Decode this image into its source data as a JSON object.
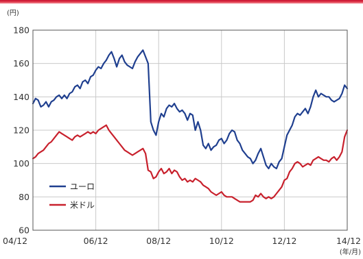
{
  "chart_data": {
    "type": "line",
    "y_unit_label": "(円)",
    "x_unit_label": "(年/月)",
    "ylim": [
      60,
      180
    ],
    "y_ticks": [
      60,
      80,
      100,
      120,
      140,
      160,
      180
    ],
    "x_ticks": [
      "04/12",
      "06/12",
      "08/12",
      "10/12",
      "12/12",
      "14/12"
    ],
    "grid": true,
    "legend_position": "bottom-left",
    "series": [
      {
        "name": "ユーロ",
        "color": "#1f3f8f",
        "x": [
          "04/12",
          "05/01",
          "05/02",
          "05/03",
          "05/04",
          "05/05",
          "05/06",
          "05/07",
          "05/08",
          "05/09",
          "05/10",
          "05/11",
          "05/12",
          "06/01",
          "06/02",
          "06/03",
          "06/04",
          "06/05",
          "06/06",
          "06/07",
          "06/08",
          "06/09",
          "06/10",
          "06/11",
          "06/12",
          "07/01",
          "07/02",
          "07/03",
          "07/04",
          "07/05",
          "07/06",
          "07/07",
          "07/08",
          "07/09",
          "07/10",
          "07/11",
          "07/12",
          "08/01",
          "08/02",
          "08/03",
          "08/04",
          "08/05",
          "08/06",
          "08/07",
          "08/08",
          "08/09",
          "08/10",
          "08/11",
          "08/12",
          "09/01",
          "09/02",
          "09/03",
          "09/04",
          "09/05",
          "09/06",
          "09/07",
          "09/08",
          "09/09",
          "09/10",
          "09/11",
          "09/12",
          "10/01",
          "10/02",
          "10/03",
          "10/04",
          "10/05",
          "10/06",
          "10/07",
          "10/08",
          "10/09",
          "10/10",
          "10/11",
          "10/12",
          "11/01",
          "11/02",
          "11/03",
          "11/04",
          "11/05",
          "11/06",
          "11/07",
          "11/08",
          "11/09",
          "11/10",
          "11/11",
          "11/12",
          "12/01",
          "12/02",
          "12/03",
          "12/04",
          "12/05",
          "12/06",
          "12/07",
          "12/08",
          "12/09",
          "12/10",
          "12/11",
          "12/12",
          "13/01",
          "13/02",
          "13/03",
          "13/04",
          "13/05",
          "13/06",
          "13/07",
          "13/08",
          "13/09",
          "13/10",
          "13/11",
          "13/12",
          "14/01",
          "14/02",
          "14/03",
          "14/04",
          "14/05",
          "14/06",
          "14/07",
          "14/08",
          "14/09",
          "14/10",
          "14/11",
          "14/12"
        ],
        "values": [
          136,
          139,
          138,
          134,
          135,
          137,
          134,
          137,
          138,
          140,
          141,
          139,
          141,
          139,
          142,
          143,
          146,
          147,
          145,
          149,
          150,
          148,
          152,
          153,
          156,
          158,
          157,
          160,
          162,
          165,
          167,
          163,
          158,
          163,
          165,
          161,
          159,
          158,
          157,
          161,
          164,
          166,
          168,
          164,
          160,
          125,
          120,
          117,
          125,
          130,
          128,
          133,
          135,
          134,
          136,
          133,
          131,
          132,
          130,
          126,
          130,
          129,
          120,
          125,
          120,
          111,
          109,
          112,
          108,
          110,
          111,
          114,
          115,
          112,
          114,
          118,
          120,
          119,
          114,
          112,
          108,
          106,
          104,
          103,
          100,
          102,
          106,
          109,
          104,
          99,
          97,
          100,
          98,
          97,
          101,
          103,
          110,
          117,
          120,
          123,
          128,
          130,
          129,
          131,
          133,
          130,
          134,
          140,
          144,
          140,
          142,
          141,
          140,
          140,
          138,
          137,
          138,
          139,
          142,
          147,
          145
        ]
      },
      {
        "name": "米ドル",
        "color": "#c8202c",
        "x": [
          "04/12",
          "05/01",
          "05/02",
          "05/03",
          "05/04",
          "05/05",
          "05/06",
          "05/07",
          "05/08",
          "05/09",
          "05/10",
          "05/11",
          "05/12",
          "06/01",
          "06/02",
          "06/03",
          "06/04",
          "06/05",
          "06/06",
          "06/07",
          "06/08",
          "06/09",
          "06/10",
          "06/11",
          "06/12",
          "07/01",
          "07/02",
          "07/03",
          "07/04",
          "07/05",
          "07/06",
          "07/07",
          "07/08",
          "07/09",
          "07/10",
          "07/11",
          "07/12",
          "08/01",
          "08/02",
          "08/03",
          "08/04",
          "08/05",
          "08/06",
          "08/07",
          "08/08",
          "08/09",
          "08/10",
          "08/11",
          "08/12",
          "09/01",
          "09/02",
          "09/03",
          "09/04",
          "09/05",
          "09/06",
          "09/07",
          "09/08",
          "09/09",
          "09/10",
          "09/11",
          "09/12",
          "10/01",
          "10/02",
          "10/03",
          "10/04",
          "10/05",
          "10/06",
          "10/07",
          "10/08",
          "10/09",
          "10/10",
          "10/11",
          "10/12",
          "11/01",
          "11/02",
          "11/03",
          "11/04",
          "11/05",
          "11/06",
          "11/07",
          "11/08",
          "11/09",
          "11/10",
          "11/11",
          "11/12",
          "12/01",
          "12/02",
          "12/03",
          "12/04",
          "12/05",
          "12/06",
          "12/07",
          "12/08",
          "12/09",
          "12/10",
          "12/11",
          "12/12",
          "13/01",
          "13/02",
          "13/03",
          "13/04",
          "13/05",
          "13/06",
          "13/07",
          "13/08",
          "13/09",
          "13/10",
          "13/11",
          "13/12",
          "14/01",
          "14/02",
          "14/03",
          "14/04",
          "14/05",
          "14/06",
          "14/07",
          "14/08",
          "14/09",
          "14/10",
          "14/11",
          "14/12"
        ],
        "values": [
          103,
          104,
          106,
          107,
          108,
          110,
          112,
          113,
          115,
          117,
          119,
          118,
          117,
          116,
          115,
          114,
          116,
          117,
          116,
          117,
          118,
          119,
          118,
          119,
          118,
          120,
          121,
          122,
          123,
          120,
          118,
          116,
          114,
          112,
          110,
          108,
          107,
          106,
          105,
          106,
          107,
          108,
          109,
          106,
          96,
          95,
          91,
          92,
          95,
          97,
          94,
          95,
          97,
          94,
          96,
          95,
          92,
          90,
          91,
          89,
          90,
          89,
          91,
          90,
          89,
          87,
          86,
          85,
          83,
          82,
          81,
          82,
          83,
          81,
          80,
          80,
          80,
          79,
          78,
          77,
          77,
          77,
          77,
          77,
          78,
          81,
          80,
          82,
          80,
          79,
          80,
          79,
          80,
          82,
          84,
          86,
          90,
          91,
          95,
          97,
          100,
          101,
          100,
          98,
          99,
          100,
          99,
          102,
          103,
          104,
          103,
          102,
          102,
          101,
          103,
          104,
          102,
          104,
          107,
          116,
          120
        ]
      }
    ]
  }
}
